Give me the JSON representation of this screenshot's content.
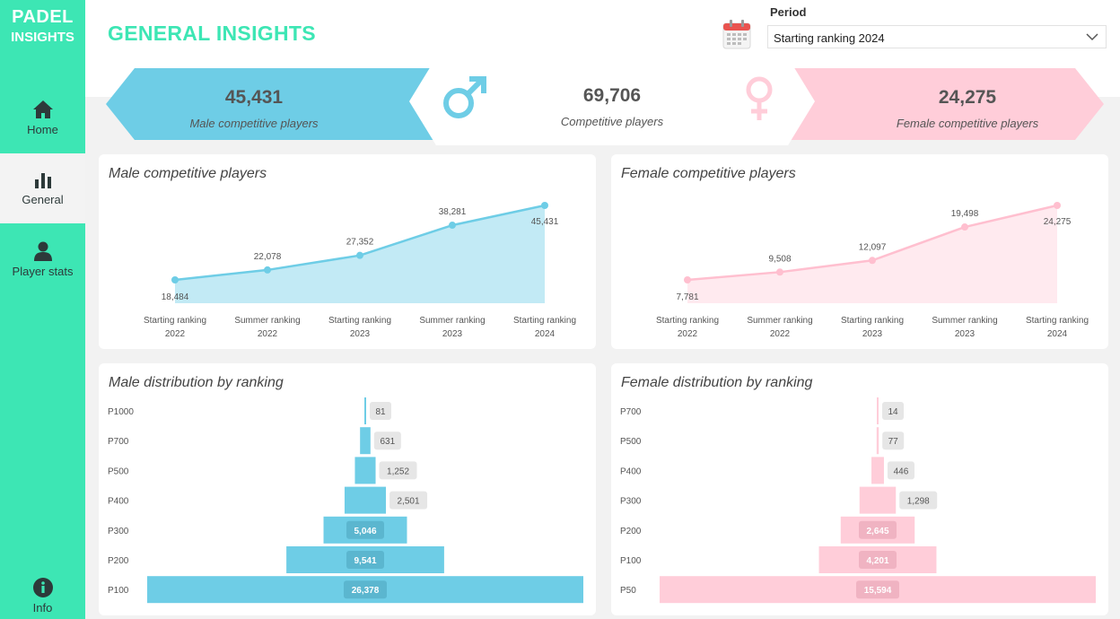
{
  "logo": {
    "line1": "PADEL",
    "line2": "INSIGHTS"
  },
  "nav": [
    {
      "label": "Home",
      "icon": "home-icon"
    },
    {
      "label": "General",
      "icon": "bar-chart-icon"
    },
    {
      "label": "Player stats",
      "icon": "person-icon"
    },
    {
      "label": "Info",
      "icon": "info-icon"
    }
  ],
  "header": {
    "title": "GENERAL INSIGHTS"
  },
  "period": {
    "label": "Period",
    "selected": "Starting ranking 2024"
  },
  "kpis": {
    "male": {
      "value": "45,431",
      "label": "Male competitive players"
    },
    "total": {
      "value": "69,706",
      "label": "Competitive players"
    },
    "female": {
      "value": "24,275",
      "label": "Female competitive players"
    }
  },
  "colors": {
    "accent": "#3de6b4",
    "male": "#6ecde6",
    "female": "#ffcdd9"
  },
  "chart_data": [
    {
      "type": "area",
      "title": "Male competitive players",
      "categories": [
        [
          "Starting ranking",
          "2022"
        ],
        [
          "Summer ranking",
          "2022"
        ],
        [
          "Starting ranking",
          "2023"
        ],
        [
          "Summer ranking",
          "2023"
        ],
        [
          "Starting ranking",
          "2024"
        ]
      ],
      "values": [
        18484,
        22078,
        27352,
        38281,
        45431
      ],
      "labels": [
        "18,484",
        "22,078",
        "27,352",
        "38,281",
        "45,431"
      ],
      "color": "#6ecde6"
    },
    {
      "type": "area",
      "title": "Female competitive players",
      "categories": [
        [
          "Starting ranking",
          "2022"
        ],
        [
          "Summer ranking",
          "2022"
        ],
        [
          "Starting ranking",
          "2023"
        ],
        [
          "Summer ranking",
          "2023"
        ],
        [
          "Starting ranking",
          "2024"
        ]
      ],
      "values": [
        7781,
        9508,
        12097,
        19498,
        24275
      ],
      "labels": [
        "7,781",
        "9,508",
        "12,097",
        "19,498",
        "24,275"
      ],
      "color": "#ffcdd9"
    },
    {
      "type": "bar",
      "title": "Male distribution by ranking",
      "categories": [
        "P1000",
        "P700",
        "P500",
        "P400",
        "P300",
        "P200",
        "P100"
      ],
      "values": [
        81,
        631,
        1252,
        2501,
        5046,
        9541,
        26378
      ],
      "labels": [
        "81",
        "631",
        "1,252",
        "2,501",
        "5,046",
        "9,541",
        "26,378"
      ],
      "color": "#6ecde6"
    },
    {
      "type": "bar",
      "title": "Female distribution by ranking",
      "categories": [
        "P700",
        "P500",
        "P400",
        "P300",
        "P200",
        "P100",
        "P50"
      ],
      "values": [
        14,
        77,
        446,
        1298,
        2645,
        4201,
        15594
      ],
      "labels": [
        "14",
        "77",
        "446",
        "1,298",
        "2,645",
        "4,201",
        "15,594"
      ],
      "color": "#ffcdd9"
    }
  ]
}
